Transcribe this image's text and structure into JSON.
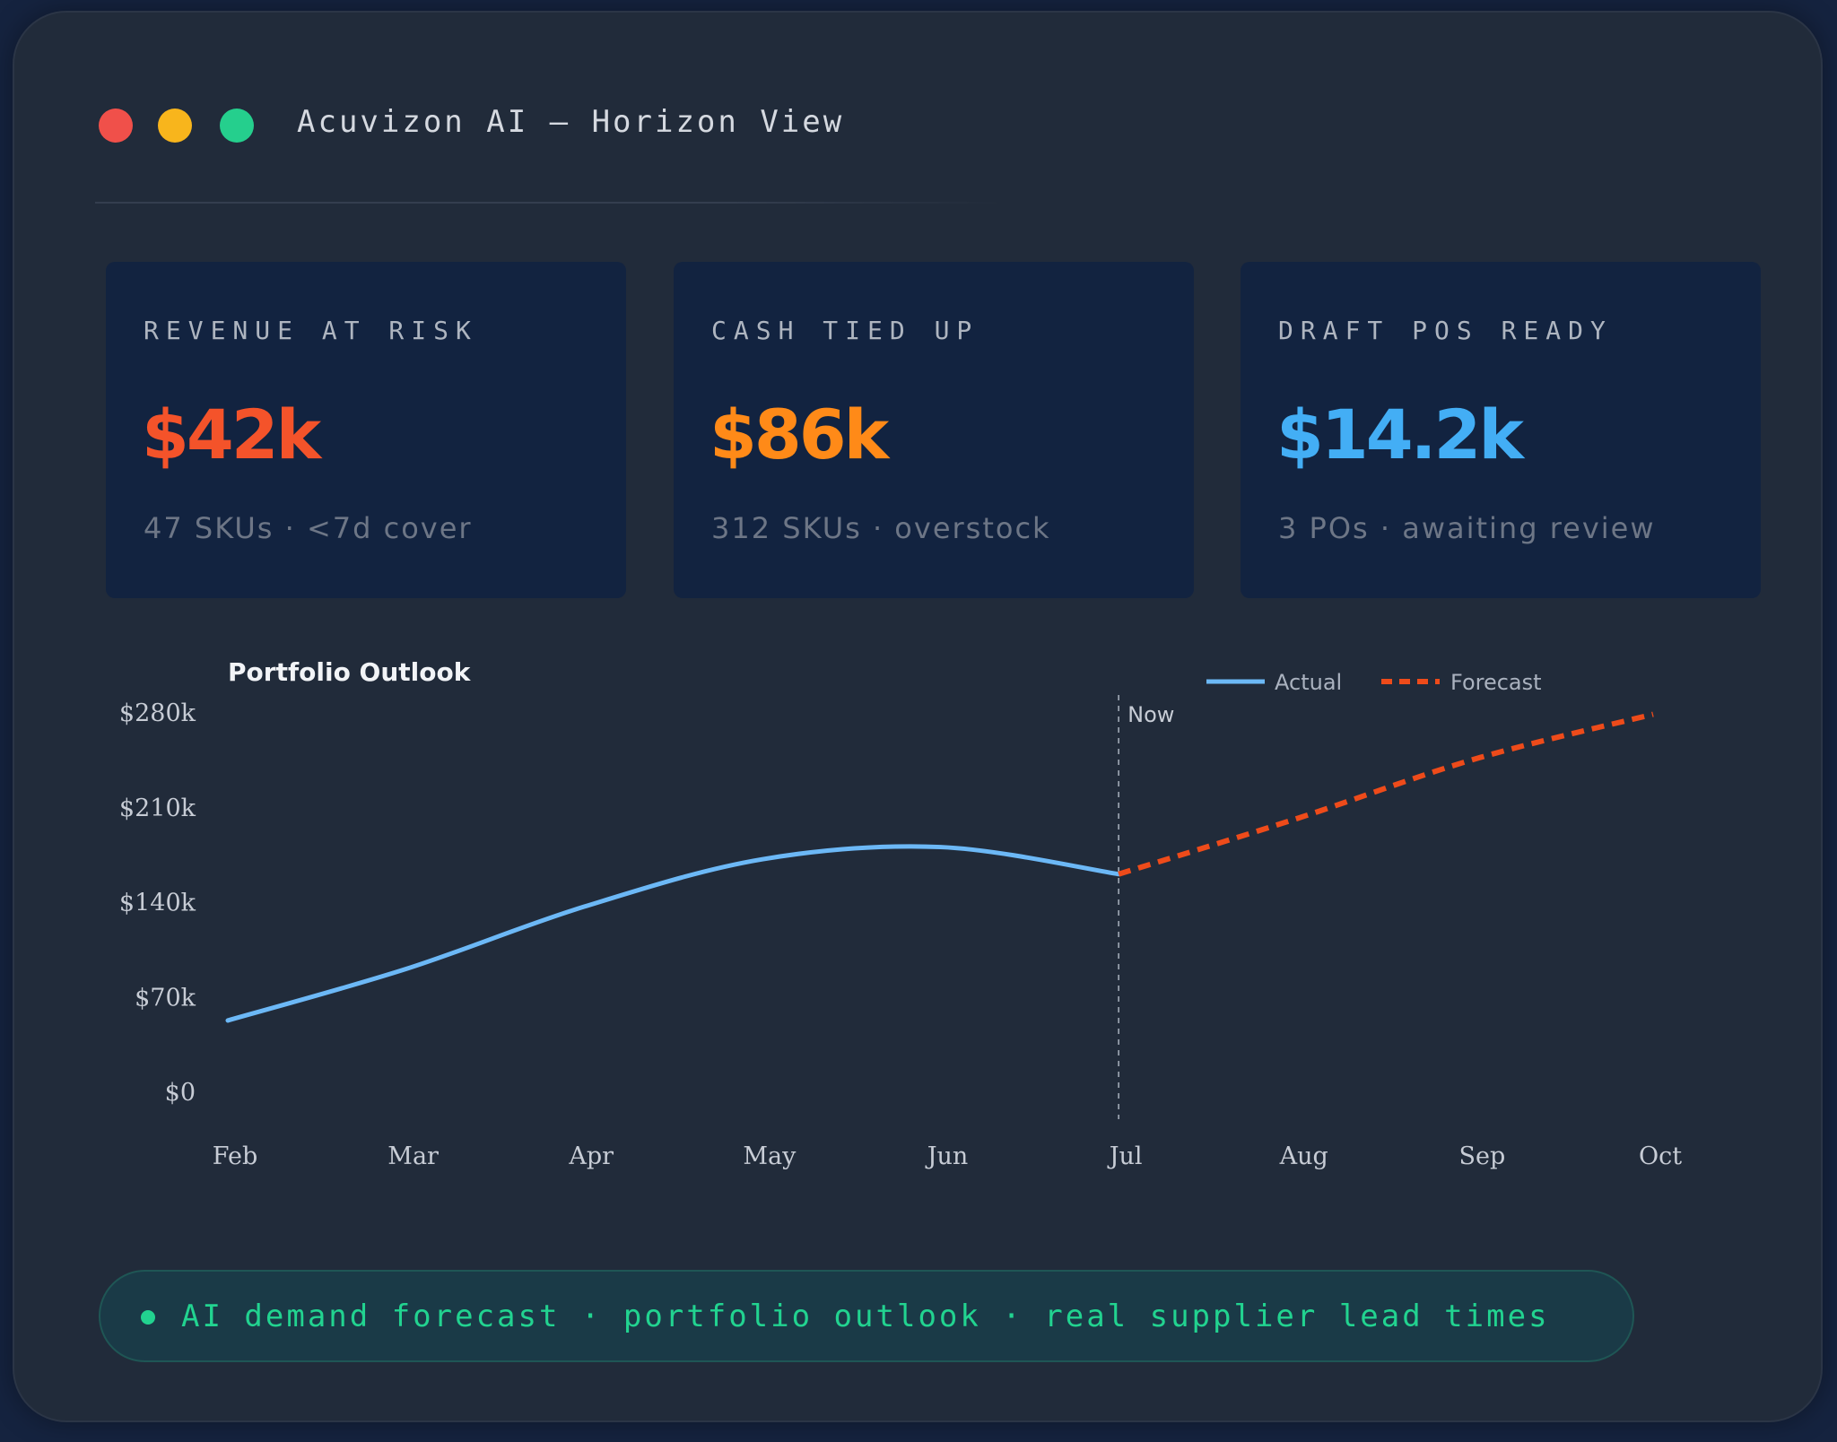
{
  "window": {
    "title": "Acuvizon AI — Horizon View"
  },
  "cards": [
    {
      "label": "REVENUE AT RISK",
      "value": "$42k",
      "sub": "47 SKUs · <7d cover",
      "color": "#f4532a"
    },
    {
      "label": "CASH TIED UP",
      "value": "$86k",
      "sub": "312 SKUs · overstock",
      "color": "#ff8a18"
    },
    {
      "label": "DRAFT POS READY",
      "value": "$14.2k",
      "sub": "3 POs · awaiting review",
      "color": "#43aef5"
    }
  ],
  "chart_data": {
    "type": "line",
    "title": "Portfolio Outlook",
    "x": [
      "Feb",
      "Mar",
      "Apr",
      "May",
      "Jun",
      "Jul",
      "Aug",
      "Sep",
      "Oct"
    ],
    "y_ticks": [
      "$0",
      "$70k",
      "$140k",
      "$210k",
      "$280k"
    ],
    "ylim": [
      0,
      280
    ],
    "legend_position": "top-right",
    "now_label": "Now",
    "now_x": "Jul",
    "series": [
      {
        "name": "Actual",
        "color": "#6cb8f6",
        "style": "solid",
        "points": [
          [
            "Feb",
            53
          ],
          [
            "Mar",
            91
          ],
          [
            "Apr",
            137
          ],
          [
            "May",
            172
          ],
          [
            "Jun",
            181
          ],
          [
            "Jul",
            161
          ]
        ]
      },
      {
        "name": "Forecast",
        "color": "#ee4b1a",
        "style": "dashed",
        "points": [
          [
            "Jul",
            161
          ],
          [
            "Aug",
            202
          ],
          [
            "Sep",
            246
          ],
          [
            "Oct",
            279
          ]
        ]
      }
    ]
  },
  "footer": {
    "text": "AI demand forecast · portfolio outlook · real supplier lead times",
    "status_color": "#22d390"
  }
}
